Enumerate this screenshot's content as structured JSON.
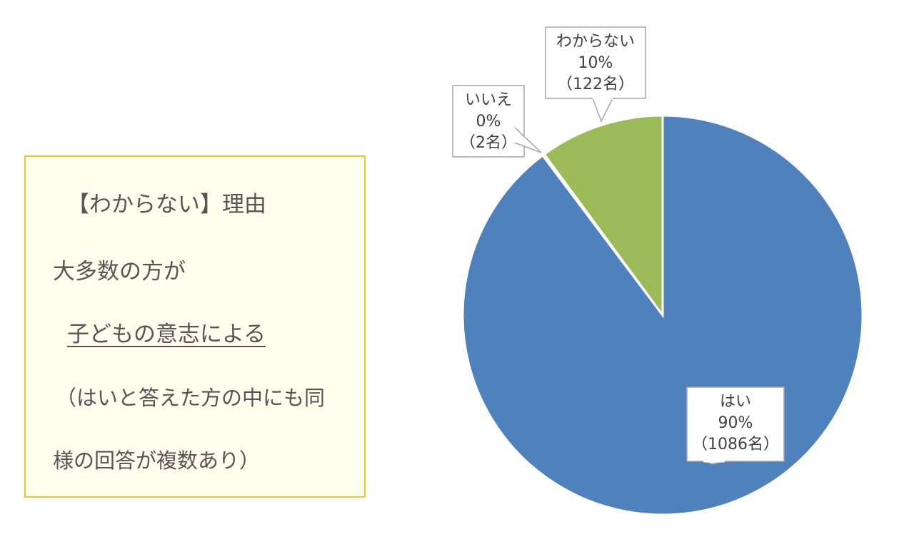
{
  "note": {
    "lines": [
      "【わからない】理由",
      "大多数の方が",
      "子どもの意志による",
      "（はいと答えた方の中にも同",
      "様の回答が複数あり）"
    ]
  },
  "chart_data": {
    "type": "pie",
    "title": "",
    "slices": [
      {
        "label": "はい",
        "percent_label": "90%",
        "count_label": "（1086名）",
        "value": 1086,
        "color": "#4f81bd"
      },
      {
        "label": "いいえ",
        "percent_label": "0%",
        "count_label": "（2名）",
        "value": 2,
        "color": "#c0504d"
      },
      {
        "label": "わからない",
        "percent_label": "10%",
        "count_label": "（122名）",
        "value": 122,
        "color": "#9bbb59"
      }
    ],
    "start_angle_deg": 0,
    "direction": "clockwise",
    "legend": "none"
  }
}
